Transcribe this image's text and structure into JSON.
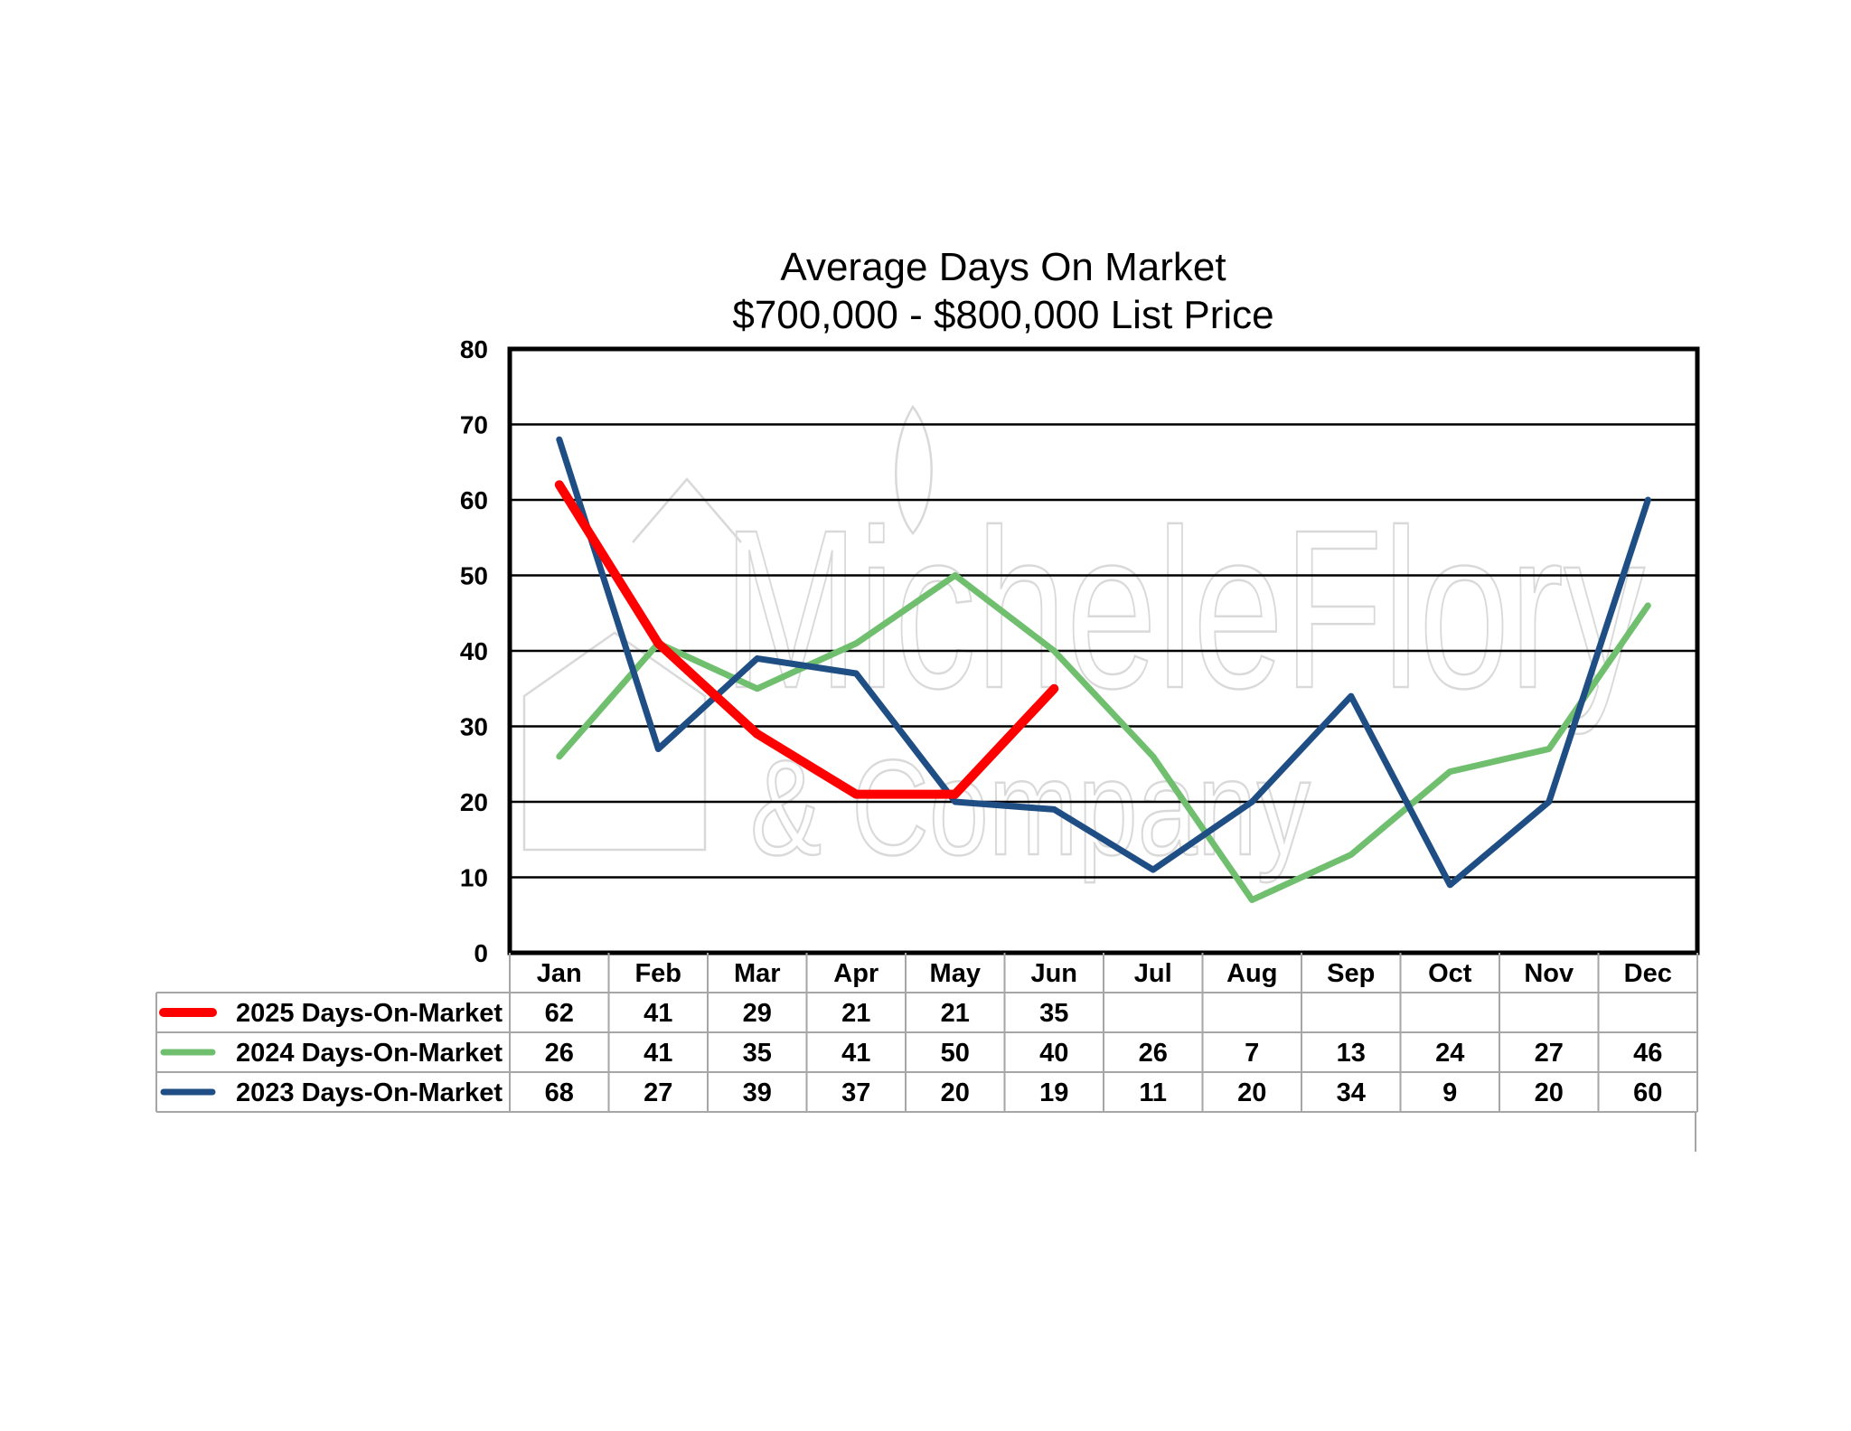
{
  "chart_data": {
    "type": "line",
    "title": "Average Days On Market",
    "subtitle": "$700,000 - $800,000 List Price",
    "categories": [
      "Jan",
      "Feb",
      "Mar",
      "Apr",
      "May",
      "Jun",
      "Jul",
      "Aug",
      "Sep",
      "Oct",
      "Nov",
      "Dec"
    ],
    "ylim": [
      0,
      80
    ],
    "yticks": [
      0,
      10,
      20,
      30,
      40,
      50,
      60,
      70,
      80
    ],
    "grid": true,
    "legend_placement": "data-table-left",
    "series": [
      {
        "name": "2025 Days-On-Market",
        "color": "#ff0000",
        "values": [
          62,
          41,
          29,
          21,
          21,
          35,
          null,
          null,
          null,
          null,
          null,
          null
        ]
      },
      {
        "name": "2024 Days-On-Market",
        "color": "#70bf6f",
        "values": [
          26,
          41,
          35,
          41,
          50,
          40,
          26,
          7,
          13,
          24,
          27,
          46
        ]
      },
      {
        "name": "2023 Days-On-Market",
        "color": "#1f4e85",
        "values": [
          68,
          27,
          39,
          37,
          20,
          19,
          11,
          20,
          34,
          9,
          20,
          60
        ]
      }
    ]
  },
  "watermark": {
    "line1": "MicheleFlory",
    "line2": "& Company"
  }
}
